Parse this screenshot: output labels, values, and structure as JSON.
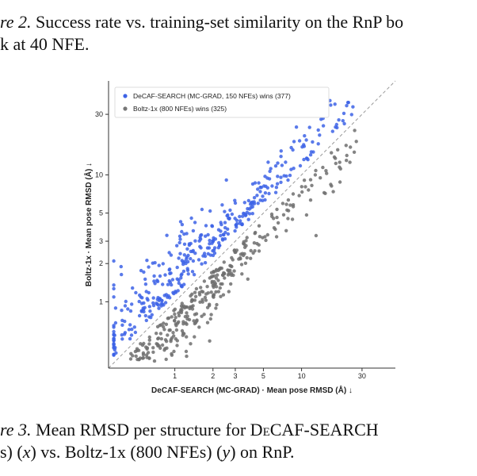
{
  "caption_top": {
    "lines": [
      "re 2. Success rate vs. training-set similarity on the RnP bo",
      "k at 40 NFE."
    ]
  },
  "caption_bottom": {
    "lines": [
      "re 3. Mean RMSD per structure for DeCAF-SEARCH",
      "s) (x) vs. Boltz-1x (800 NFEs) (y) on RnP."
    ]
  },
  "chart_data": {
    "type": "scatter",
    "title": "",
    "xlabel": "DeCAF-SEARCH (MC-GRAD) · Mean pose RMSD (Å) ↓",
    "ylabel": "Boltz-1x · Mean pose RMSD (Å) ↓",
    "x_scale": "log",
    "y_scale": "log",
    "xlim": [
      0.3,
      55
    ],
    "ylim": [
      0.3,
      55
    ],
    "x_ticks": [
      "1",
      "2",
      "3",
      "5",
      "10",
      "30"
    ],
    "y_ticks": [
      "1",
      "2",
      "3",
      "5",
      "10",
      "30"
    ],
    "diagonal": "y = x dashed reference line",
    "grid": false,
    "legend_position": "top-left",
    "series": [
      {
        "name": "DeCAF-SEARCH (MC-GRAD, 150 NFEs) wins (377)",
        "color": "#3d63e6",
        "count": 377
      },
      {
        "name": "Boltz-1x (800 NFEs) wins (325)",
        "color": "#6e6e6e",
        "count": 325
      }
    ]
  }
}
